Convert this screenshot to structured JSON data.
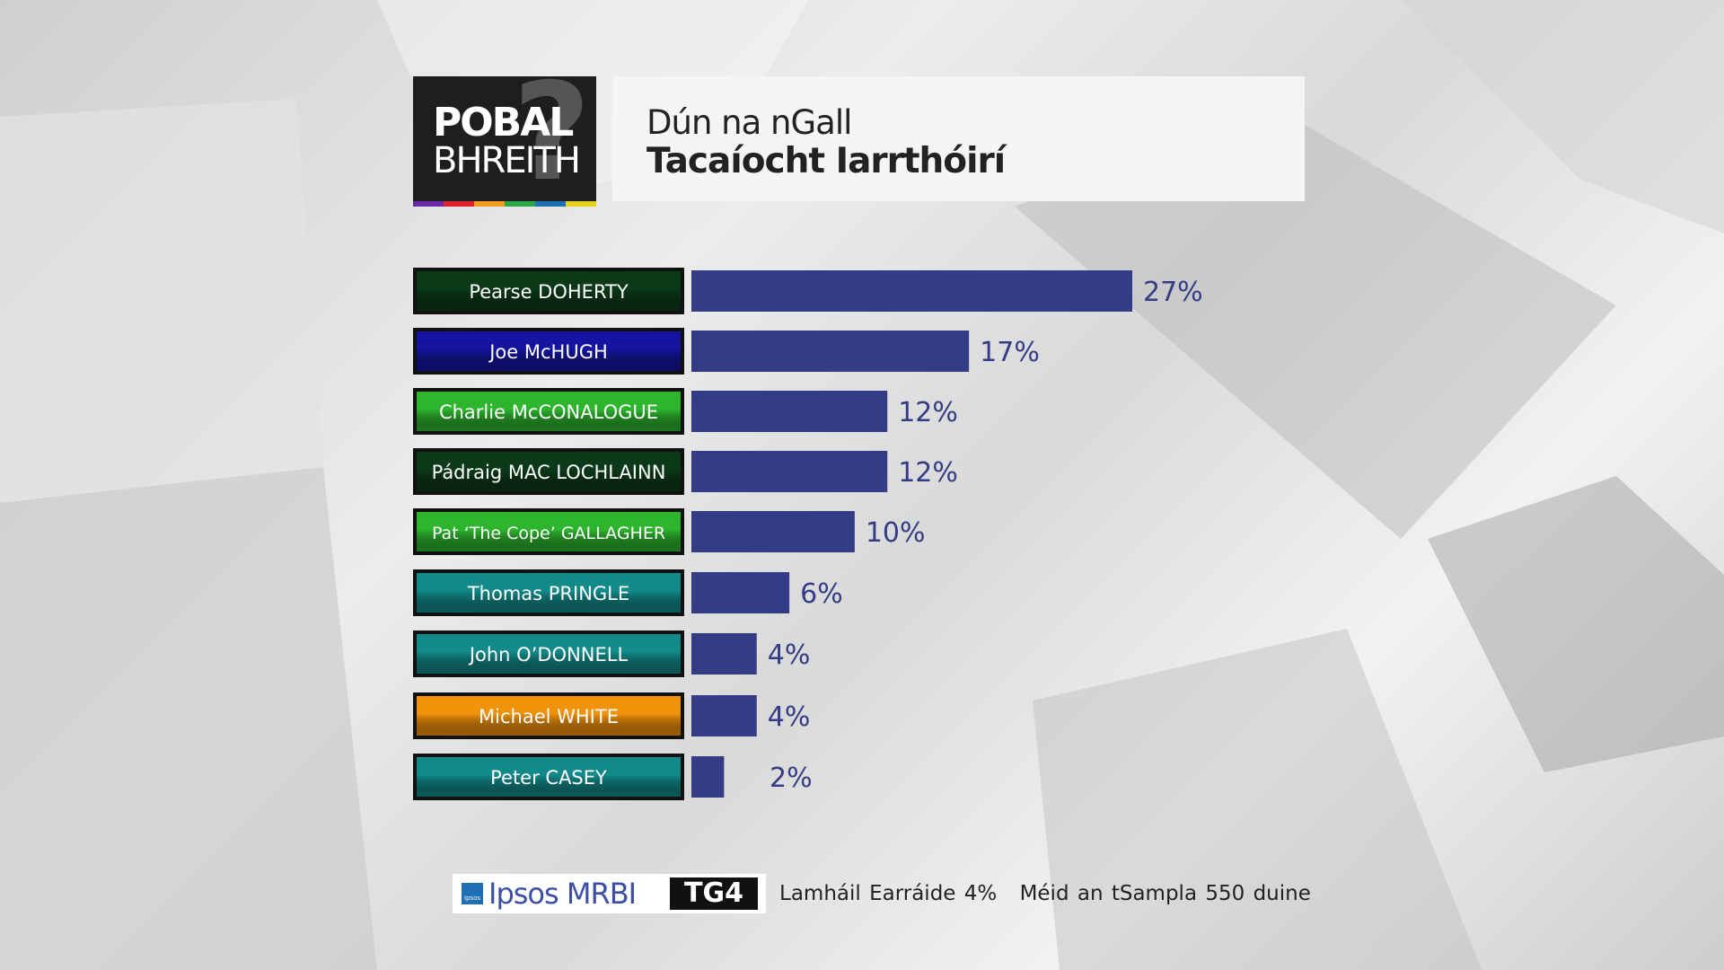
{
  "header": {
    "logo_line1": "POBAL",
    "logo_line2": "BHREITH",
    "logo_mark": "?",
    "subtitle": "Dún na nGall",
    "title": "Tacaíocht Iarrthóirí"
  },
  "colors": {
    "bar": "#333c84",
    "value_text": "#333c84",
    "logo_stripe": [
      "#6a2aa8",
      "#e0232b",
      "#f29b1d",
      "#2aa84a",
      "#1f6fb5",
      "#e5d21c"
    ]
  },
  "chart_data": {
    "type": "bar",
    "orientation": "horizontal",
    "categories": [
      "Pearse DOHERTY",
      "Joe McHUGH",
      "Charlie McCONALOGUE",
      "Pádraig MAC LOCHLAINN",
      "Pat ‘The Cope’ GALLAGHER",
      "Thomas PRINGLE",
      "John O’DONNELL",
      "Michael WHITE",
      "Peter CASEY"
    ],
    "values": [
      27,
      17,
      12,
      12,
      10,
      6,
      4,
      4,
      2
    ],
    "value_labels": [
      "27%",
      "17%",
      "12%",
      "12%",
      "10%",
      "6%",
      "4%",
      "4%",
      "2%"
    ],
    "label_colors": [
      "#0b3a18",
      "#1414a0",
      "#2db52d",
      "#0b3a18",
      "#2db52d",
      "#138a8a",
      "#138a8a",
      "#f0920a",
      "#138a8a"
    ],
    "xlim": [
      0,
      27
    ],
    "grid": false,
    "legend": "none"
  },
  "footer": {
    "ipsos_mark": "Ipsos",
    "ipsos": "Ipsos MRBI",
    "tg4": "TG4",
    "margin_of_error": "Lamháil Earráide 4%",
    "sample": "Méid an tSampla 550 duine"
  }
}
